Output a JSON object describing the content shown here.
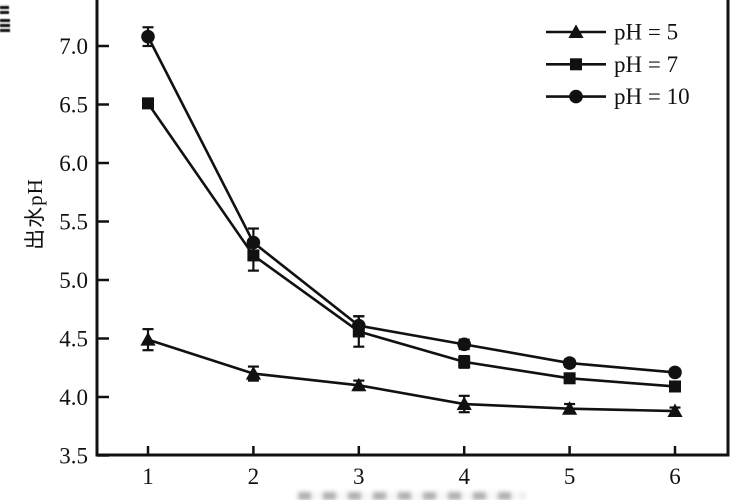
{
  "figure": {
    "background": "#ffffff",
    "ink_color": "#111111"
  },
  "chart_data": {
    "type": "line",
    "title": "",
    "ylabel": "出水pH",
    "x": [
      1,
      2,
      3,
      4,
      5,
      6
    ],
    "x_tick_labels": [
      "1",
      "2",
      "3",
      "4",
      "5",
      "6"
    ],
    "yticks": [
      3.5,
      4.0,
      4.5,
      5.0,
      5.5,
      6.0,
      6.5,
      7.0
    ],
    "y_tick_labels": [
      "3.5",
      "4.0",
      "4.5",
      "5.0",
      "5.5",
      "6.0",
      "6.5",
      "7.0"
    ],
    "xlim": [
      0.52,
      6.5
    ],
    "ylim": [
      3.5,
      7.39
    ],
    "grid": false,
    "error_bars": true,
    "legend_position": "top-right",
    "series": [
      {
        "name": "pH = 5",
        "marker": "triangle",
        "color": "#111111",
        "values": [
          4.49,
          4.2,
          4.1,
          3.94,
          3.9,
          3.88
        ],
        "errors": [
          0.09,
          0.06,
          0.04,
          0.07,
          0.04,
          0.03
        ]
      },
      {
        "name": "pH = 7",
        "marker": "square",
        "color": "#111111",
        "values": [
          6.51,
          5.21,
          4.56,
          4.3,
          4.16,
          4.09
        ],
        "errors": [
          0.04,
          0.13,
          0.13,
          0.05,
          0.04,
          0.04
        ]
      },
      {
        "name": "pH = 10",
        "marker": "circle",
        "color": "#111111",
        "values": [
          7.08,
          5.32,
          4.61,
          4.45,
          4.29,
          4.21
        ],
        "errors": [
          0.08,
          0.12,
          0.08,
          0.04,
          0.03,
          0.03
        ]
      }
    ]
  }
}
